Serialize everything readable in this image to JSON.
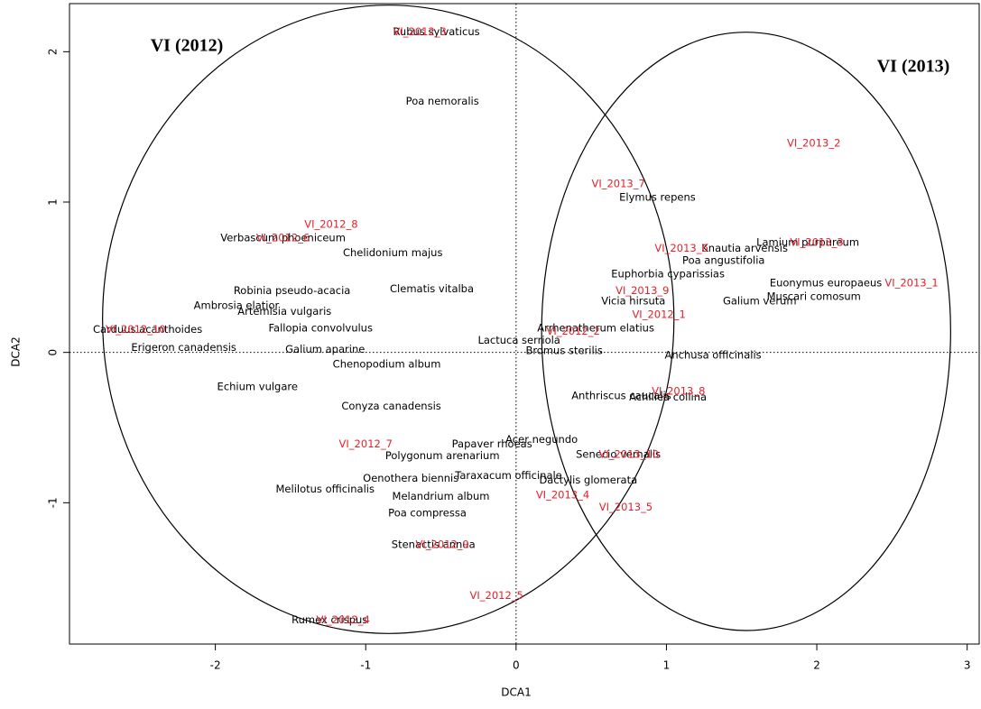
{
  "chart_data": {
    "type": "scatter",
    "xlabel": "DCA1",
    "ylabel": "DCA2",
    "xlim": [
      -2.97,
      3.08
    ],
    "ylim": [
      -1.94,
      2.32
    ],
    "xticks": [
      -2,
      -1,
      0,
      1,
      2,
      3
    ],
    "yticks": [
      -1,
      0,
      1,
      2
    ],
    "zero_lines": true,
    "series": [
      {
        "color": "#000000",
        "labels": [
          "Rubus sylvaticus",
          "Poa nemoralis",
          "Verbascum phoeniceum",
          "Chelidonium majus",
          "Robinia pseudo-acacia",
          "Clematis vitalba",
          "Ambrosia elatior",
          "Artemisia vulgaris",
          "Fallopia convolvulus",
          "Carduus acanthoides",
          "Erigeron canadensis",
          "Galium aparine",
          "Chenopodium album",
          "Echium vulgare",
          "Conyza canadensis",
          "Lactuca serriola",
          "Bromus sterilis",
          "Arrhenatherum elatius",
          "Elymus repens",
          "Knautia arvensis",
          "Lamium purpureum",
          "Poa angustifolia",
          "Euphorbia cyparissias",
          "Euonymus europaeus",
          "Muscari comosum",
          "Galium verum",
          "Vicia hirsuta",
          "Anchusa officinalis",
          "Anthriscus caucalis",
          "Achillea collina",
          "Acer negundo",
          "Papaver rhoeas",
          "Polygonum arenarium",
          "Senecio vernalis",
          "Oenothera biennis",
          "Taraxacum officinale",
          "Dactylis glomerata",
          "Melilotus officinalis",
          "Melandrium album",
          "Poa compressa",
          "Stenactis annua",
          "Rumex crispus"
        ],
        "x": [
          -0.53,
          -0.49,
          -1.55,
          -0.82,
          -1.49,
          -0.56,
          -1.86,
          -1.54,
          -1.3,
          -2.45,
          -2.21,
          -1.27,
          -0.86,
          -1.72,
          -0.83,
          0.02,
          0.32,
          0.53,
          0.94,
          1.52,
          1.94,
          1.38,
          1.01,
          2.06,
          1.98,
          1.62,
          0.78,
          1.31,
          0.7,
          1.01,
          0.17,
          -0.16,
          -0.49,
          0.68,
          -0.7,
          -0.05,
          0.48,
          -1.27,
          -0.5,
          -0.59,
          -0.55,
          -1.24
        ],
        "y": [
          2.13,
          1.67,
          0.76,
          0.66,
          0.41,
          0.42,
          0.31,
          0.27,
          0.16,
          0.15,
          0.03,
          0.02,
          -0.08,
          -0.23,
          -0.36,
          0.08,
          0.01,
          0.16,
          1.03,
          0.69,
          0.73,
          0.61,
          0.52,
          0.46,
          0.37,
          0.34,
          0.34,
          -0.02,
          -0.29,
          -0.3,
          -0.58,
          -0.61,
          -0.69,
          -0.68,
          -0.84,
          -0.82,
          -0.85,
          -0.91,
          -0.96,
          -1.07,
          -1.28,
          -1.78
        ]
      },
      {
        "color": "#e8202a",
        "labels": [
          "VI_2012_1",
          "VI_2012_2",
          "VI_2012_3",
          "VI_2012_4",
          "VI_2012_5",
          "VI_2012_6",
          "VI_2012_7",
          "VI_2012_8",
          "VI_2012_9",
          "VI_2012_10",
          "VI_2013_1",
          "VI_2013_2",
          "VI_2013_3",
          "VI_2013_4",
          "VI_2013_5",
          "VI_2013_6",
          "VI_2013_7",
          "VI_2013_8",
          "VI_2013_9",
          "VI_2013_10"
        ],
        "x": [
          0.95,
          0.38,
          -0.64,
          -1.15,
          -0.13,
          -1.55,
          -1.0,
          -1.23,
          -0.49,
          -2.53,
          2.63,
          1.98,
          2.0,
          0.31,
          0.73,
          1.1,
          0.68,
          1.08,
          0.84,
          0.75
        ],
        "y": [
          0.25,
          0.14,
          2.13,
          -1.78,
          -1.62,
          0.76,
          -0.61,
          0.85,
          -1.28,
          0.15,
          0.46,
          1.39,
          0.73,
          -0.95,
          -1.03,
          0.69,
          1.12,
          -0.26,
          0.41,
          -0.68
        ]
      }
    ],
    "ellipses": [
      {
        "label": "VI (2012)",
        "center": [
          -0.85,
          0.22
        ],
        "radii": [
          1.9,
          2.09
        ]
      },
      {
        "label": "VI (2013)",
        "center": [
          1.53,
          0.14
        ],
        "radii": [
          1.36,
          1.99
        ]
      }
    ]
  }
}
